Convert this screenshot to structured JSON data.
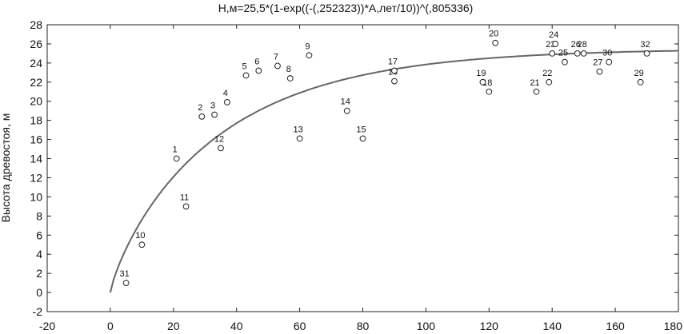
{
  "chart_data": {
    "type": "scatter",
    "title": "H,м=25,5*(1-exp((-(,252323))*A,лет/10))^(,805336)",
    "xlabel": "",
    "ylabel": "Высота древостоя, м",
    "xlim": [
      -20,
      180
    ],
    "ylim": [
      -2,
      28
    ],
    "x_ticks": [
      "-20",
      "0",
      "20",
      "40",
      "60",
      "80",
      "100",
      "120",
      "140",
      "160",
      "180"
    ],
    "y_ticks": [
      "-2",
      "0",
      "2",
      "4",
      "6",
      "8",
      "10",
      "12",
      "14",
      "16",
      "18",
      "20",
      "22",
      "24",
      "26",
      "28"
    ],
    "grid": false,
    "fit_curve": {
      "name": "H = 25.5*(1-exp(-0.252323*A/10))^0.805336",
      "a": 25.5,
      "b": 0.252323,
      "c": 0.805336
    },
    "points": [
      {
        "label": "1",
        "x": 21,
        "y": 14
      },
      {
        "label": "2",
        "x": 29,
        "y": 18.4
      },
      {
        "label": "3",
        "x": 33,
        "y": 18.6
      },
      {
        "label": "4",
        "x": 37,
        "y": 19.9
      },
      {
        "label": "5",
        "x": 43,
        "y": 22.7
      },
      {
        "label": "6",
        "x": 47,
        "y": 23.2
      },
      {
        "label": "7",
        "x": 53,
        "y": 23.7
      },
      {
        "label": "8",
        "x": 57,
        "y": 22.4
      },
      {
        "label": "9",
        "x": 63,
        "y": 24.8
      },
      {
        "label": "10",
        "x": 10,
        "y": 5
      },
      {
        "label": "11",
        "x": 24,
        "y": 9
      },
      {
        "label": "12",
        "x": 35,
        "y": 15.1
      },
      {
        "label": "13",
        "x": 60,
        "y": 16.1
      },
      {
        "label": "14",
        "x": 75,
        "y": 19
      },
      {
        "label": "15",
        "x": 80,
        "y": 16.1
      },
      {
        "label": "16",
        "x": 90,
        "y": 22.1
      },
      {
        "label": "17",
        "x": 90,
        "y": 23.2
      },
      {
        "label": "18",
        "x": 120,
        "y": 21
      },
      {
        "label": "19",
        "x": 118,
        "y": 22
      },
      {
        "label": "20",
        "x": 122,
        "y": 26.1
      },
      {
        "label": "21",
        "x": 135,
        "y": 21
      },
      {
        "label": "22",
        "x": 139,
        "y": 22
      },
      {
        "label": "23",
        "x": 140,
        "y": 25
      },
      {
        "label": "24",
        "x": 141,
        "y": 26
      },
      {
        "label": "25",
        "x": 144,
        "y": 24.1
      },
      {
        "label": "26",
        "x": 148,
        "y": 25
      },
      {
        "label": "27",
        "x": 155,
        "y": 23.1
      },
      {
        "label": "28",
        "x": 150,
        "y": 25
      },
      {
        "label": "29",
        "x": 168,
        "y": 22
      },
      {
        "label": "30",
        "x": 158,
        "y": 24.1
      },
      {
        "label": "31",
        "x": 5,
        "y": 1
      },
      {
        "label": "32",
        "x": 170,
        "y": 25
      }
    ]
  }
}
